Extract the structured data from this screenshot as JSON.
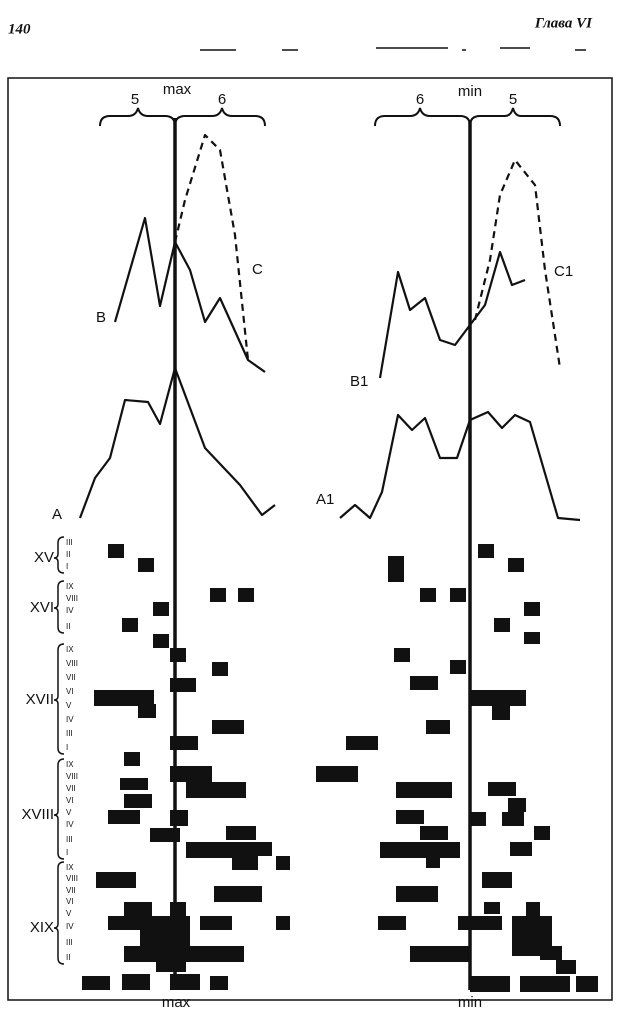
{
  "header": {
    "page_number": "140",
    "chapter": "Глава VI"
  },
  "figure": {
    "left": {
      "axis_top": "max",
      "axis_bottom": "max",
      "brace_left": "5",
      "brace_right": "6",
      "curve_c": "C",
      "curve_b": "B",
      "curve_a": "A"
    },
    "right": {
      "axis_top": "min",
      "axis_bottom": "min",
      "brace_left": "6",
      "brace_right": "5",
      "curve_c": "C1",
      "curve_b": "B1",
      "curve_a": "A1"
    },
    "centuries": [
      {
        "label": "XV",
        "periods": [
          "III",
          "II",
          "I"
        ]
      },
      {
        "label": "XVI",
        "periods": [
          "IX",
          "VIII",
          "IV",
          "II"
        ]
      },
      {
        "label": "XVII",
        "periods": [
          "IX",
          "VIII",
          "VII",
          "VI",
          "V",
          "IV",
          "III",
          "I"
        ]
      },
      {
        "label": "XVIII",
        "periods": [
          "IX",
          "VIII",
          "VII",
          "VI",
          "V",
          "IV",
          "III",
          "I"
        ]
      },
      {
        "label": "XIX",
        "periods": [
          "IX",
          "VIII",
          "VII",
          "VI",
          "V",
          "IV",
          "III",
          "II"
        ]
      }
    ]
  }
}
